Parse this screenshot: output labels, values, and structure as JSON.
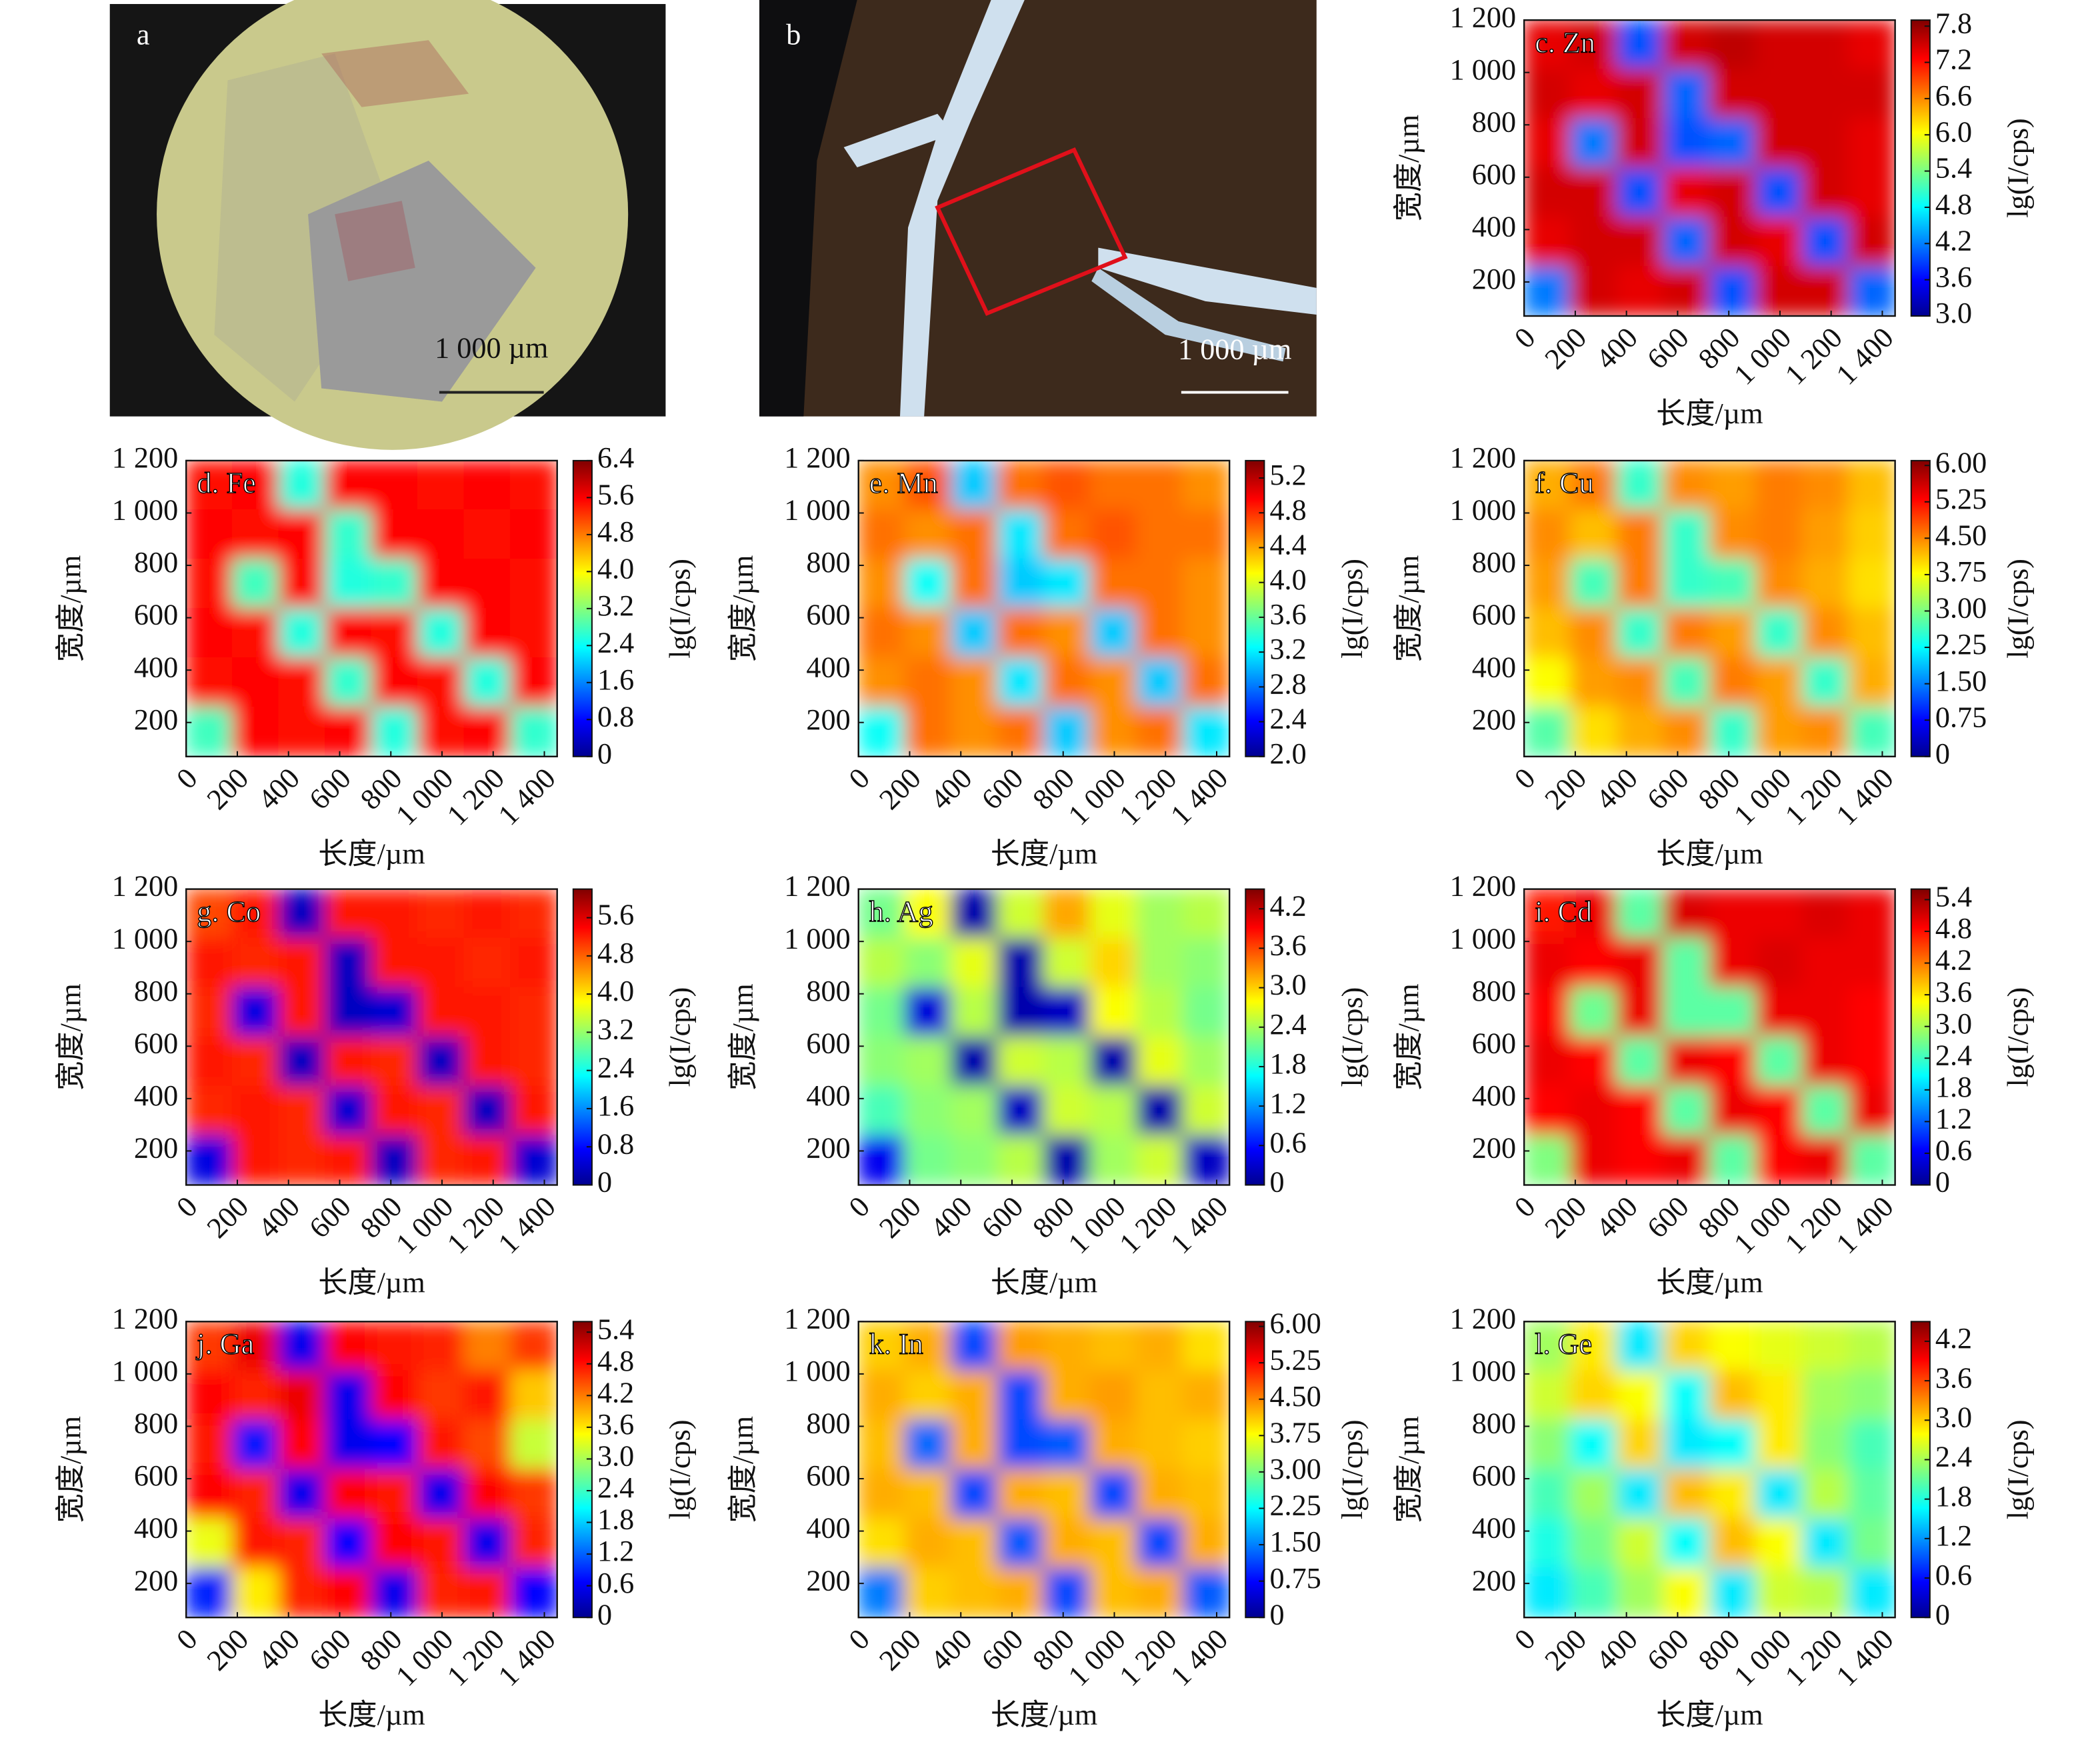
{
  "photos": [
    {
      "label": "a",
      "scale_bar": "1 000 µm"
    },
    {
      "label": "b",
      "scale_bar": "1 000 µm"
    }
  ],
  "chart_data": [
    {
      "type": "heatmap",
      "title": "c. Zn",
      "x_label": "长度/µm",
      "y_label": "宽度/µm",
      "colorbar_label": "lg(I/cps)",
      "colormap": "jet",
      "xlim": [
        0,
        1450
      ],
      "ylim": [
        70,
        1200
      ],
      "xticks": [
        0,
        200,
        400,
        600,
        800,
        {
          "value": 1000,
          "label": "1 000"
        },
        {
          "value": 1200,
          "label": "1 200"
        },
        {
          "value": 1400,
          "label": "1 400"
        }
      ],
      "yticks": [
        200,
        400,
        600,
        800,
        {
          "value": 1000,
          "label": "1 000"
        },
        {
          "value": 1200,
          "label": "1 200"
        }
      ],
      "clim": [
        3.0,
        7.9
      ],
      "cticks": [
        {
          "value": 3.0,
          "label": "3.0"
        },
        3.6,
        4.2,
        4.8,
        5.4,
        {
          "value": 6.0,
          "label": "6.0"
        },
        6.6,
        7.2,
        7.8
      ],
      "z": [
        [
          7.4,
          7.5,
          4.0,
          7.5,
          7.6,
          7.5,
          7.5,
          7.4
        ],
        [
          7.5,
          7.4,
          7.5,
          4.1,
          7.5,
          7.5,
          7.5,
          7.5
        ],
        [
          7.4,
          4.2,
          7.5,
          4.0,
          4.1,
          7.5,
          7.5,
          7.4
        ],
        [
          7.5,
          7.5,
          4.0,
          7.4,
          7.5,
          4.0,
          7.5,
          7.4
        ],
        [
          7.4,
          7.5,
          7.5,
          4.1,
          7.5,
          7.4,
          4.0,
          7.5
        ],
        [
          4.2,
          7.5,
          7.4,
          7.5,
          4.0,
          7.5,
          7.5,
          4.1
        ]
      ]
    },
    {
      "type": "heatmap",
      "title": "d. Fe",
      "x_label": "长度/µm",
      "y_label": "宽度/µm",
      "colorbar_label": "lg(I/cps)",
      "colormap": "jet",
      "xlim": [
        0,
        1450
      ],
      "ylim": [
        70,
        1200
      ],
      "xticks": [
        0,
        200,
        400,
        600,
        800,
        {
          "value": 1000,
          "label": "1 000"
        },
        {
          "value": 1200,
          "label": "1 200"
        },
        {
          "value": 1400,
          "label": "1 400"
        }
      ],
      "yticks": [
        200,
        400,
        600,
        800,
        {
          "value": 1000,
          "label": "1 000"
        },
        {
          "value": 1200,
          "label": "1 200"
        }
      ],
      "clim": [
        0,
        6.4
      ],
      "cticks": [
        0,
        0.8,
        1.6,
        2.4,
        3.2,
        {
          "value": 4.0,
          "label": "4.0"
        },
        4.8,
        5.6,
        6.4
      ],
      "z": [
        [
          5.5,
          5.6,
          2.6,
          5.6,
          5.6,
          5.5,
          5.6,
          5.5
        ],
        [
          5.6,
          5.5,
          5.6,
          2.7,
          5.6,
          5.6,
          5.5,
          5.6
        ],
        [
          5.5,
          2.8,
          5.6,
          2.6,
          2.7,
          5.6,
          5.6,
          5.5
        ],
        [
          5.6,
          5.5,
          2.6,
          5.6,
          5.5,
          2.6,
          5.6,
          5.5
        ],
        [
          5.5,
          5.6,
          5.5,
          2.7,
          5.6,
          5.5,
          2.6,
          5.6
        ],
        [
          2.8,
          5.6,
          5.5,
          5.6,
          2.6,
          5.5,
          5.6,
          2.7
        ]
      ]
    },
    {
      "type": "heatmap",
      "title": "e. Mn",
      "x_label": "长度/µm",
      "y_label": "宽度/µm",
      "colorbar_label": "lg(I/cps)",
      "colormap": "jet",
      "xlim": [
        0,
        1450
      ],
      "ylim": [
        70,
        1200
      ],
      "xticks": [
        0,
        200,
        400,
        600,
        800,
        {
          "value": 1000,
          "label": "1 000"
        },
        {
          "value": 1200,
          "label": "1 200"
        },
        {
          "value": 1400,
          "label": "1 400"
        }
      ],
      "yticks": [
        200,
        400,
        600,
        800,
        {
          "value": 1000,
          "label": "1 000"
        },
        {
          "value": 1200,
          "label": "1 200"
        }
      ],
      "clim": [
        2.0,
        5.4
      ],
      "cticks": [
        {
          "value": 2.0,
          "label": "2.0"
        },
        2.4,
        2.8,
        3.2,
        3.6,
        {
          "value": 4.0,
          "label": "4.0"
        },
        4.4,
        4.8,
        5.2
      ],
      "z": [
        [
          4.5,
          4.7,
          3.1,
          4.6,
          4.7,
          4.6,
          4.6,
          4.5
        ],
        [
          4.6,
          4.5,
          4.6,
          3.2,
          4.6,
          4.7,
          4.6,
          4.6
        ],
        [
          4.5,
          3.3,
          4.6,
          3.1,
          3.2,
          4.6,
          4.6,
          4.5
        ],
        [
          4.6,
          4.5,
          3.1,
          4.6,
          4.5,
          3.1,
          4.6,
          4.5
        ],
        [
          4.5,
          4.6,
          4.5,
          3.2,
          4.6,
          4.5,
          3.1,
          4.6
        ],
        [
          3.3,
          4.6,
          4.5,
          4.6,
          3.1,
          4.5,
          4.6,
          3.2
        ]
      ]
    },
    {
      "type": "heatmap",
      "title": "f. Cu",
      "x_label": "长度/µm",
      "y_label": "宽度/µm",
      "colorbar_label": "lg(I/cps)",
      "colormap": "jet",
      "xlim": [
        0,
        1450
      ],
      "ylim": [
        70,
        1200
      ],
      "xticks": [
        0,
        200,
        400,
        600,
        800,
        {
          "value": 1000,
          "label": "1 000"
        },
        {
          "value": 1200,
          "label": "1 200"
        },
        {
          "value": 1400,
          "label": "1 400"
        }
      ],
      "yticks": [
        200,
        400,
        600,
        800,
        {
          "value": 1000,
          "label": "1 000"
        },
        {
          "value": 1200,
          "label": "1 200"
        }
      ],
      "clim": [
        0,
        6.1
      ],
      "cticks": [
        0,
        0.75,
        {
          "value": 1.5,
          "label": "1.50"
        },
        2.25,
        {
          "value": 3.0,
          "label": "3.00"
        },
        3.75,
        {
          "value": 4.5,
          "label": "4.50"
        },
        5.25,
        {
          "value": 6.0,
          "label": "6.00"
        }
      ],
      "z": [
        [
          4.3,
          4.6,
          2.6,
          4.5,
          4.4,
          4.6,
          4.5,
          4.2
        ],
        [
          4.5,
          4.2,
          4.6,
          2.6,
          4.5,
          4.6,
          4.4,
          4.1
        ],
        [
          4.4,
          2.7,
          4.6,
          2.6,
          2.7,
          4.5,
          4.3,
          4.0
        ],
        [
          4.2,
          4.5,
          2.6,
          4.6,
          4.4,
          2.6,
          4.5,
          4.2
        ],
        [
          3.8,
          4.4,
          4.5,
          2.7,
          4.6,
          4.4,
          2.6,
          4.3
        ],
        [
          2.8,
          4.0,
          4.3,
          4.5,
          2.6,
          4.4,
          4.5,
          2.7
        ]
      ]
    },
    {
      "type": "heatmap",
      "title": "g. Co",
      "x_label": "长度/µm",
      "y_label": "宽度/µm",
      "colorbar_label": "lg(I/cps)",
      "colormap": "jet",
      "xlim": [
        0,
        1450
      ],
      "ylim": [
        70,
        1200
      ],
      "xticks": [
        0,
        200,
        400,
        600,
        800,
        {
          "value": 1000,
          "label": "1 000"
        },
        {
          "value": 1200,
          "label": "1 200"
        },
        {
          "value": 1400,
          "label": "1 400"
        }
      ],
      "yticks": [
        200,
        400,
        600,
        800,
        {
          "value": 1000,
          "label": "1 000"
        },
        {
          "value": 1200,
          "label": "1 200"
        }
      ],
      "clim": [
        0,
        6.2
      ],
      "cticks": [
        0,
        0.8,
        1.6,
        2.4,
        3.2,
        {
          "value": 4.0,
          "label": "4.0"
        },
        4.8,
        5.6
      ],
      "z": [
        [
          5.0,
          5.3,
          0.4,
          5.3,
          5.3,
          5.2,
          5.3,
          5.2
        ],
        [
          5.3,
          5.2,
          5.3,
          0.4,
          5.3,
          5.3,
          5.2,
          5.3
        ],
        [
          5.2,
          0.6,
          5.3,
          0.4,
          0.5,
          5.3,
          5.3,
          5.2
        ],
        [
          5.3,
          5.2,
          0.4,
          5.3,
          5.2,
          0.4,
          5.3,
          5.2
        ],
        [
          5.2,
          5.3,
          5.2,
          0.5,
          5.3,
          5.2,
          0.4,
          5.3
        ],
        [
          0.6,
          5.3,
          5.2,
          5.3,
          0.4,
          5.2,
          5.3,
          0.5
        ]
      ]
    },
    {
      "type": "heatmap",
      "title": "h. Ag",
      "x_label": "长度/µm",
      "y_label": "宽度/µm",
      "colorbar_label": "lg(I/cps)",
      "colormap": "jet",
      "xlim": [
        0,
        1450
      ],
      "ylim": [
        70,
        1200
      ],
      "xticks": [
        0,
        200,
        400,
        600,
        800,
        {
          "value": 1000,
          "label": "1 000"
        },
        {
          "value": 1200,
          "label": "1 200"
        },
        {
          "value": 1400,
          "label": "1 400"
        }
      ],
      "yticks": [
        200,
        400,
        600,
        800,
        {
          "value": 1000,
          "label": "1 000"
        },
        {
          "value": 1200,
          "label": "1 200"
        }
      ],
      "clim": [
        0,
        4.5
      ],
      "cticks": [
        0,
        0.6,
        1.2,
        1.8,
        2.4,
        {
          "value": 3.0,
          "label": "3.0"
        },
        3.6,
        4.2
      ],
      "z": [
        [
          2.2,
          2.8,
          0.2,
          2.6,
          3.2,
          2.7,
          2.4,
          2.5
        ],
        [
          2.5,
          2.3,
          2.7,
          0.2,
          2.6,
          3.0,
          2.4,
          2.3
        ],
        [
          2.2,
          0.4,
          2.5,
          0.2,
          0.3,
          2.8,
          2.5,
          2.2
        ],
        [
          2.3,
          2.4,
          0.2,
          2.6,
          2.5,
          0.2,
          2.7,
          2.4
        ],
        [
          2.0,
          2.3,
          2.4,
          0.3,
          2.6,
          2.5,
          0.2,
          2.6
        ],
        [
          0.5,
          2.2,
          2.3,
          2.5,
          0.2,
          2.4,
          2.6,
          0.3
        ]
      ]
    },
    {
      "type": "heatmap",
      "title": "i. Cd",
      "x_label": "长度/µm",
      "y_label": "宽度/µm",
      "colorbar_label": "lg(I/cps)",
      "colormap": "jet",
      "xlim": [
        0,
        1450
      ],
      "ylim": [
        70,
        1200
      ],
      "xticks": [
        0,
        200,
        400,
        600,
        800,
        {
          "value": 1000,
          "label": "1 000"
        },
        {
          "value": 1200,
          "label": "1 200"
        },
        {
          "value": 1400,
          "label": "1 400"
        }
      ],
      "yticks": [
        200,
        400,
        600,
        800,
        {
          "value": 1000,
          "label": "1 000"
        },
        {
          "value": 1200,
          "label": "1 200"
        }
      ],
      "clim": [
        0,
        5.6
      ],
      "cticks": [
        0,
        0.6,
        1.2,
        1.8,
        2.4,
        {
          "value": 3.0,
          "label": "3.0"
        },
        3.6,
        4.2,
        4.8,
        5.4
      ],
      "z": [
        [
          4.8,
          5.0,
          2.6,
          5.1,
          5.0,
          5.0,
          5.1,
          5.0
        ],
        [
          5.0,
          4.9,
          5.0,
          2.6,
          5.0,
          5.1,
          5.0,
          5.0
        ],
        [
          4.9,
          2.7,
          5.0,
          2.6,
          2.6,
          5.0,
          5.0,
          4.9
        ],
        [
          5.0,
          4.9,
          2.6,
          5.0,
          4.9,
          2.6,
          5.0,
          4.9
        ],
        [
          4.9,
          5.0,
          4.9,
          2.6,
          5.0,
          4.9,
          2.6,
          5.0
        ],
        [
          2.8,
          5.0,
          4.9,
          5.0,
          2.6,
          4.9,
          5.0,
          2.6
        ]
      ]
    },
    {
      "type": "heatmap",
      "title": "j. Ga",
      "x_label": "长度/µm",
      "y_label": "宽度/µm",
      "colorbar_label": "lg(I/cps)",
      "colormap": "jet",
      "xlim": [
        0,
        1450
      ],
      "ylim": [
        70,
        1200
      ],
      "xticks": [
        0,
        200,
        400,
        600,
        800,
        {
          "value": 1000,
          "label": "1 000"
        },
        {
          "value": 1200,
          "label": "1 200"
        },
        {
          "value": 1400,
          "label": "1 400"
        }
      ],
      "yticks": [
        200,
        400,
        600,
        800,
        {
          "value": 1000,
          "label": "1 000"
        },
        {
          "value": 1200,
          "label": "1 200"
        }
      ],
      "clim": [
        0,
        5.6
      ],
      "cticks": [
        0,
        0.6,
        1.2,
        1.8,
        2.4,
        {
          "value": 3.0,
          "label": "3.0"
        },
        3.6,
        4.2,
        4.8,
        5.4
      ],
      "z": [
        [
          4.6,
          5.0,
          0.6,
          4.9,
          4.8,
          4.7,
          4.2,
          4.6
        ],
        [
          4.9,
          4.7,
          5.0,
          0.6,
          4.9,
          4.6,
          4.8,
          3.8
        ],
        [
          4.8,
          0.8,
          4.9,
          0.6,
          0.7,
          4.8,
          4.5,
          3.2
        ],
        [
          4.9,
          4.7,
          0.6,
          4.9,
          4.8,
          0.6,
          4.9,
          4.6
        ],
        [
          3.4,
          4.8,
          4.7,
          0.7,
          4.9,
          4.8,
          0.6,
          4.7
        ],
        [
          0.9,
          3.6,
          4.7,
          4.9,
          0.6,
          4.7,
          4.8,
          0.7
        ]
      ]
    },
    {
      "type": "heatmap",
      "title": "k. In",
      "x_label": "长度/µm",
      "y_label": "宽度/µm",
      "colorbar_label": "lg(I/cps)",
      "colormap": "jet",
      "xlim": [
        0,
        1450
      ],
      "ylim": [
        70,
        1200
      ],
      "xticks": [
        0,
        200,
        400,
        600,
        800,
        {
          "value": 1000,
          "label": "1 000"
        },
        {
          "value": 1200,
          "label": "1 200"
        },
        {
          "value": 1400,
          "label": "1 400"
        }
      ],
      "yticks": [
        200,
        400,
        600,
        800,
        {
          "value": 1000,
          "label": "1 000"
        },
        {
          "value": 1200,
          "label": "1 200"
        }
      ],
      "clim": [
        0,
        6.1
      ],
      "cticks": [
        0,
        0.75,
        {
          "value": 1.5,
          "label": "1.50"
        },
        2.25,
        {
          "value": 3.0,
          "label": "3.00"
        },
        3.75,
        {
          "value": 4.5,
          "label": "4.50"
        },
        5.25,
        {
          "value": 6.0,
          "label": "6.00"
        }
      ],
      "z": [
        [
          4.1,
          4.3,
          1.2,
          4.4,
          4.3,
          4.2,
          4.3,
          4.0
        ],
        [
          4.3,
          4.1,
          4.3,
          1.2,
          4.3,
          4.4,
          4.2,
          4.3
        ],
        [
          4.2,
          1.4,
          4.3,
          1.2,
          1.3,
          4.3,
          4.2,
          4.1
        ],
        [
          4.3,
          4.2,
          1.2,
          4.3,
          4.2,
          1.2,
          4.3,
          4.2
        ],
        [
          4.0,
          4.3,
          4.2,
          1.3,
          4.3,
          4.2,
          1.2,
          4.3
        ],
        [
          1.5,
          4.1,
          4.2,
          4.3,
          1.2,
          4.2,
          4.3,
          1.3
        ]
      ]
    },
    {
      "type": "heatmap",
      "title": "l. Ge",
      "x_label": "长度/µm",
      "y_label": "宽度/µm",
      "colorbar_label": "lg(I/cps)",
      "colormap": "jet",
      "xlim": [
        0,
        1450
      ],
      "ylim": [
        70,
        1200
      ],
      "xticks": [
        0,
        200,
        400,
        600,
        800,
        {
          "value": 1000,
          "label": "1 000"
        },
        {
          "value": 1200,
          "label": "1 200"
        },
        {
          "value": 1400,
          "label": "1 400"
        }
      ],
      "yticks": [
        200,
        400,
        600,
        800,
        {
          "value": 1000,
          "label": "1 000"
        },
        {
          "value": 1200,
          "label": "1 200"
        }
      ],
      "clim": [
        0,
        4.5
      ],
      "cticks": [
        0,
        0.6,
        1.2,
        1.8,
        2.4,
        {
          "value": 3.0,
          "label": "3.0"
        },
        3.6,
        4.2
      ],
      "z": [
        [
          2.4,
          2.9,
          1.6,
          3.0,
          2.8,
          2.7,
          2.6,
          2.5
        ],
        [
          2.6,
          3.0,
          2.8,
          1.7,
          3.1,
          2.9,
          2.4,
          2.3
        ],
        [
          2.3,
          1.7,
          3.0,
          1.6,
          1.7,
          2.9,
          2.3,
          2.0
        ],
        [
          2.0,
          2.4,
          1.6,
          3.1,
          2.9,
          1.6,
          2.5,
          2.1
        ],
        [
          1.8,
          2.2,
          2.6,
          1.7,
          3.1,
          2.8,
          1.6,
          2.2
        ],
        [
          1.6,
          2.0,
          2.4,
          2.8,
          1.6,
          2.6,
          2.5,
          1.6
        ]
      ]
    }
  ]
}
